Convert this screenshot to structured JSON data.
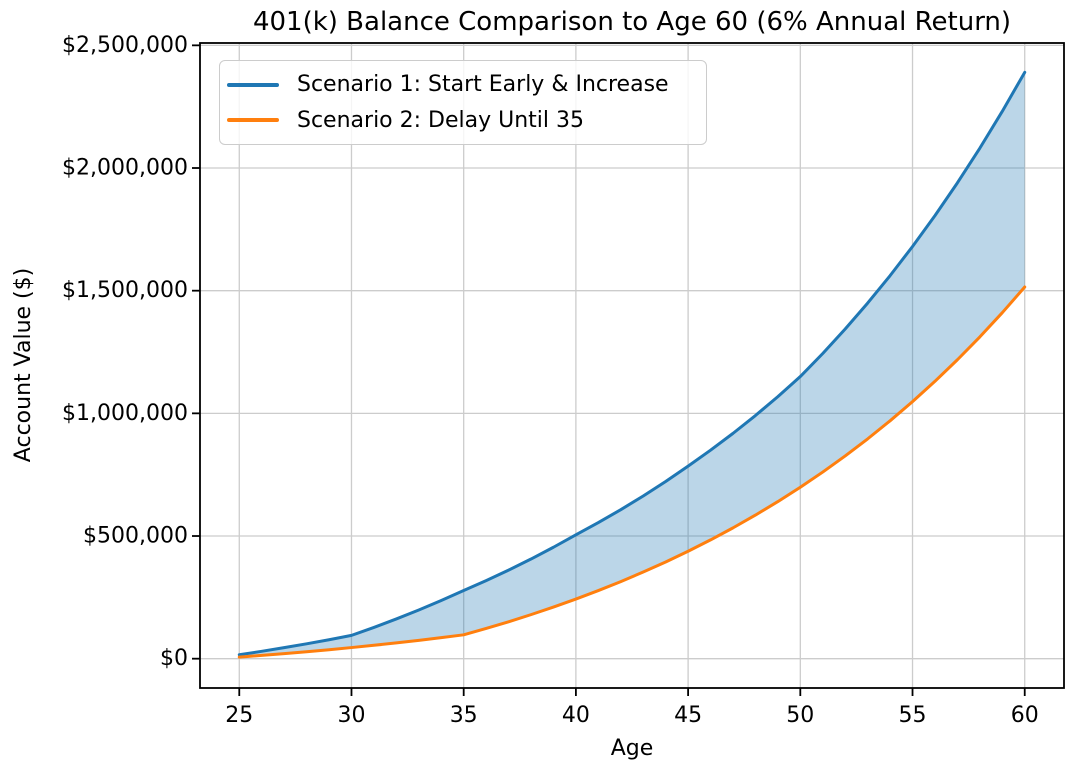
{
  "chart_data": {
    "type": "line",
    "title": "401(k) Balance Comparison to Age 60 (6% Annual Return)",
    "xlabel": "Age",
    "ylabel": "Account Value ($)",
    "grid": true,
    "background_color": "#ffffff",
    "grid_color": "#cccccc",
    "spine_color": "#000000",
    "xlim": [
      23.25,
      61.75
    ],
    "ylim": [
      -119500,
      2509550
    ],
    "xticks": [
      {
        "value": 25,
        "label": "25"
      },
      {
        "value": 30,
        "label": "30"
      },
      {
        "value": 35,
        "label": "35"
      },
      {
        "value": 40,
        "label": "40"
      },
      {
        "value": 45,
        "label": "45"
      },
      {
        "value": 50,
        "label": "50"
      },
      {
        "value": 55,
        "label": "55"
      },
      {
        "value": 60,
        "label": "60"
      }
    ],
    "yticks": [
      {
        "value": 0,
        "label": "$0"
      },
      {
        "value": 500000,
        "label": "$500,000"
      },
      {
        "value": 1000000,
        "label": "$1,000,000"
      },
      {
        "value": 1500000,
        "label": "$1,500,000"
      },
      {
        "value": 2000000,
        "label": "$2,000,000"
      },
      {
        "value": 2500000,
        "label": "$2,500,000"
      }
    ],
    "x": [
      25,
      26,
      27,
      28,
      29,
      30,
      31,
      32,
      33,
      34,
      35,
      36,
      37,
      38,
      39,
      40,
      41,
      42,
      43,
      44,
      45,
      46,
      47,
      48,
      49,
      50,
      51,
      52,
      53,
      54,
      55,
      56,
      57,
      58,
      59,
      60
    ],
    "series": [
      {
        "name": "Scenario 1: Start Early & Increase",
        "color": "#1f77b4",
        "values": [
          16000,
          30000,
          44900,
          60600,
          77300,
          95000,
          127500,
          161900,
          198300,
          237000,
          278000,
          318300,
          361000,
          406200,
          454200,
          505000,
          554700,
          607300,
          663100,
          722300,
          785000,
          849800,
          918400,
          991100,
          1068300,
          1150000,
          1244000,
          1343700,
          1449400,
          1561300,
          1680100,
          1806000,
          1939500,
          2081000,
          2231000,
          2390000
        ]
      },
      {
        "name": "Scenario 2: Delay Until 35",
        "color": "#ff7f0e",
        "values": [
          6500,
          13400,
          20700,
          28400,
          36600,
          45300,
          54600,
          64300,
          74700,
          85700,
          97300,
          123200,
          150500,
          179600,
          210400,
          243000,
          277600,
          314200,
          353100,
          394200,
          437900,
          484200,
          533200,
          585200,
          640300,
          698700,
          760700,
          826300,
          895900,
          969600,
          1047800,
          1130700,
          1218500,
          1311600,
          1410300,
          1515000
        ]
      }
    ],
    "fill_between": {
      "upper_series": 0,
      "lower_series": 1,
      "color": "#1f77b4",
      "opacity": 0.3
    },
    "legend": {
      "position": "upper left"
    }
  }
}
